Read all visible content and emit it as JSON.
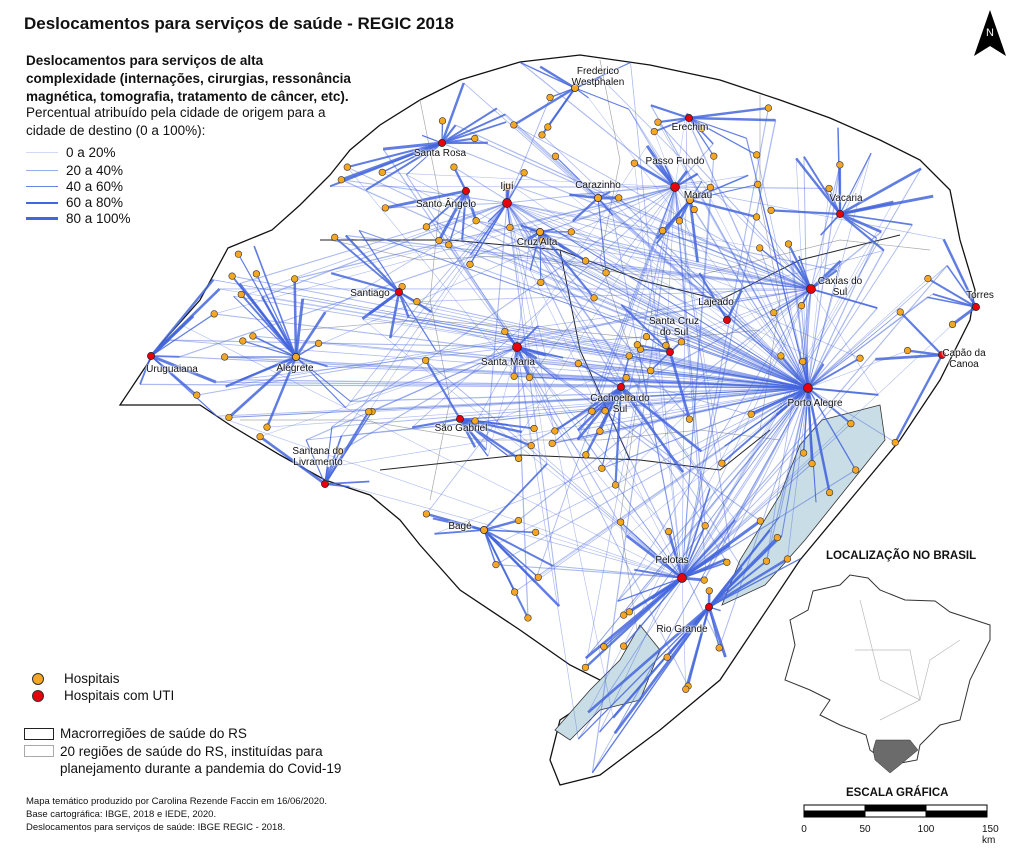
{
  "title": "Deslocamentos para serviços de saúde - REGIC 2018",
  "subtitle": "Deslocamentos para serviços de alta complexidade (internações, cirurgias, ressonância magnética, tomografia, tratamento de câncer, etc).",
  "description": "Percentual atribuído pela cidade de origem para a cidade de destino (0 a 100%):",
  "flow_legend": [
    {
      "label": "0 a 20%",
      "range_pct": [
        0,
        20
      ]
    },
    {
      "label": "20 a 40%",
      "range_pct": [
        20,
        40
      ]
    },
    {
      "label": "40 a 60%",
      "range_pct": [
        40,
        60
      ]
    },
    {
      "label": "60 a 80%",
      "range_pct": [
        60,
        80
      ]
    },
    {
      "label": "80 a 100%",
      "range_pct": [
        80,
        100
      ]
    }
  ],
  "point_legend": [
    {
      "label": "Hospitais",
      "color": "#f5a623"
    },
    {
      "label": "Hospitais com UTI",
      "color": "#e8000b"
    }
  ],
  "area_legend": [
    {
      "label": "Macrorregiões de saúde do RS"
    },
    {
      "label": "20 regiões de saúde do RS, instituídas para planejamento durante a pandemia do Covid-19"
    }
  ],
  "cities": [
    "Frederico Westphalen",
    "Erechim",
    "Santa Rosa",
    "Passo Fundo",
    "Ijuí",
    "Carazinho",
    "Santo Ângelo",
    "Marau",
    "Vacaria",
    "Cruz Alta",
    "Caxias do Sul",
    "Santiago",
    "Lajeado",
    "Torres",
    "Santa Cruz do Sul",
    "Uruguaiana",
    "Alegrete",
    "Santa Maria",
    "Capão da Canoa",
    "Porto Alegre",
    "Cachoeira do Sul",
    "São Gabriel",
    "Santana do Livramento",
    "Bagé",
    "Pelotas",
    "Rio Grande"
  ],
  "north_label": "N",
  "inset": {
    "title": "LOCALIZAÇÃO NO BRASIL"
  },
  "scale": {
    "title": "ESCALA GRÁFICA",
    "ticks": [
      "0",
      "50",
      "100",
      "150 km"
    ]
  },
  "credits": [
    "Mapa temático produzido por Carolina Rezende Faccin em 16/06/2020.",
    "Base cartográfica: IBGE, 2018 e IEDE, 2020.",
    "Deslocamentos para serviços de saúde: IBGE REGIC - 2018."
  ],
  "colors": {
    "flow": "#4466dd",
    "water": "#c9dde6",
    "hospital": "#f5a623",
    "icu": "#e8000b",
    "rs_inset": "#6b6b6b"
  }
}
